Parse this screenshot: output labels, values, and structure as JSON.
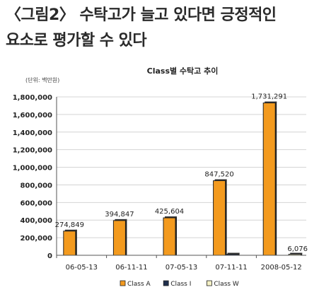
{
  "heading": {
    "line1": "〈그림2〉 수탁고가 늘고 있다면 긍정적인",
    "line2": "요소로 평가할 수 있다"
  },
  "chart_data": {
    "type": "bar",
    "title": "Class별 수탁고 추이",
    "unit_note": "(단위: 백만원)",
    "categories": [
      "06-05-13",
      "06-11-11",
      "07-05-13",
      "07-11-11",
      "2008-05-12"
    ],
    "series": [
      {
        "name": "Class A",
        "values": [
          274849,
          394847,
          425604,
          847520,
          1731291
        ],
        "color": "#f39a1e"
      },
      {
        "name": "Class I",
        "values": [
          0,
          0,
          0,
          6000,
          0
        ],
        "color": "#1f2f4d"
      },
      {
        "name": "Class W",
        "values": [
          0,
          0,
          0,
          0,
          6076
        ],
        "color": "#f4f0c4"
      }
    ],
    "data_labels": [
      {
        "series": 0,
        "index": 0,
        "text": "274,849"
      },
      {
        "series": 0,
        "index": 1,
        "text": "394,847"
      },
      {
        "series": 0,
        "index": 2,
        "text": "425,604"
      },
      {
        "series": 0,
        "index": 3,
        "text": "847,520"
      },
      {
        "series": 0,
        "index": 4,
        "text": "1,731,291"
      },
      {
        "series": 2,
        "index": 4,
        "text": "6,076"
      }
    ],
    "ylim": [
      0,
      1800000
    ],
    "yticks": [
      0,
      200000,
      400000,
      600000,
      800000,
      1000000,
      1200000,
      1400000,
      1600000,
      1800000
    ],
    "ytick_labels": [
      "0",
      "200,000",
      "400,000",
      "600,000",
      "800,000",
      "1,000,000",
      "1,200,000",
      "1,400,000",
      "1,600,000",
      "1,800,000"
    ],
    "grid": true,
    "legend_position": "bottom"
  }
}
